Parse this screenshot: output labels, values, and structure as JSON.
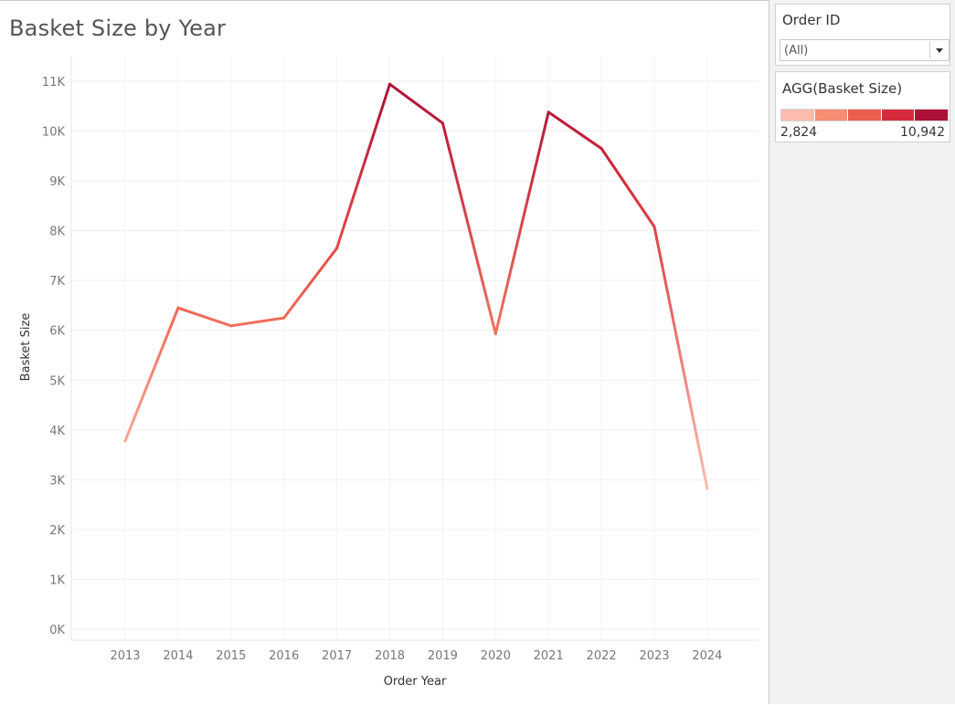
{
  "chart_data": {
    "type": "line",
    "title": "Basket Size by Year",
    "xlabel": "Order Year",
    "ylabel": "Basket Size",
    "x": [
      "2013",
      "2014",
      "2015",
      "2016",
      "2017",
      "2018",
      "2019",
      "2020",
      "2021",
      "2022",
      "2023",
      "2024"
    ],
    "series": [
      {
        "values": [
          3780,
          6450,
          6090,
          6250,
          7650,
          10942,
          10160,
          5930,
          10380,
          9650,
          8080,
          2824
        ]
      }
    ],
    "ylim": [
      0,
      11000
    ],
    "yticks": [
      0,
      1000,
      2000,
      3000,
      4000,
      5000,
      6000,
      7000,
      8000,
      9000,
      10000,
      11000
    ],
    "ytick_labels": [
      "0K",
      "1K",
      "2K",
      "3K",
      "4K",
      "5K",
      "6K",
      "7K",
      "8K",
      "9K",
      "10K",
      "11K"
    ],
    "grid": true,
    "color_encoding": "value",
    "legend_position": "right"
  },
  "filter": {
    "title": "Order ID",
    "value": "(All)"
  },
  "legend": {
    "title": "AGG(Basket Size)",
    "min_label": "2,824",
    "max_label": "10,942",
    "min": 2824,
    "max": 10942,
    "colors": [
      "#fbbcae",
      "#f68d74",
      "#ec5e4d",
      "#d62b3d",
      "#ad1138"
    ]
  }
}
